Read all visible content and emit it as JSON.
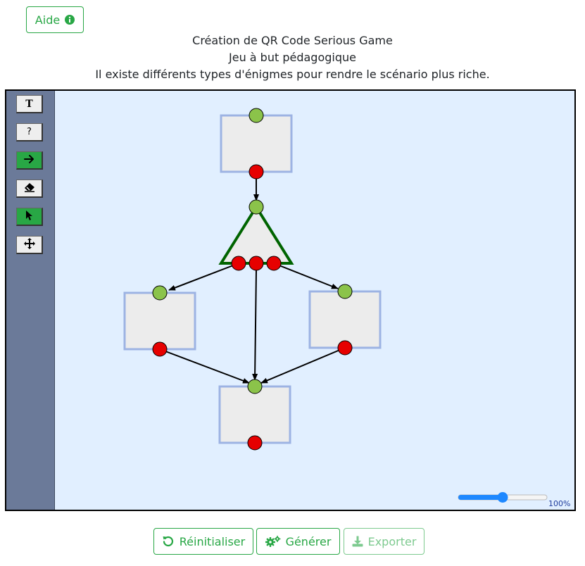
{
  "help_button": {
    "label": "Aide",
    "icon": "info-circle-icon"
  },
  "header": {
    "line1": "Création de QR Code Serious Game",
    "line2": "Jeu à but pédagogique",
    "line3": "Il existe différents types d'énigmes pour rendre le scénario plus riche."
  },
  "toolbar": {
    "tools": [
      {
        "name": "text-tool",
        "glyph": "T",
        "active": false
      },
      {
        "name": "question-tool",
        "glyph": "?",
        "active": false
      },
      {
        "name": "arrow-tool",
        "glyph": "arrow-right-icon",
        "active": true
      },
      {
        "name": "eraser-tool",
        "glyph": "eraser-icon",
        "active": false
      },
      {
        "name": "select-tool",
        "glyph": "cursor-icon",
        "active": true
      },
      {
        "name": "move-tool",
        "glyph": "move-arrows-icon",
        "active": false
      }
    ]
  },
  "zoom": {
    "value": 0.5,
    "label": "100%"
  },
  "colors": {
    "canvas_bg": "#e1efff",
    "toolbar_bg": "#6b7a99",
    "node_fill": "#ececec",
    "node_border": "#9db3e3",
    "triangle_border": "#006400",
    "input_port": "#8bc34a",
    "output_port": "#e60000",
    "accent": "#28a745",
    "slider": "#1e88ff"
  },
  "actions": {
    "reset_label": "Réinitialiser",
    "generate_label": "Générer",
    "export_label": "Exporter"
  }
}
